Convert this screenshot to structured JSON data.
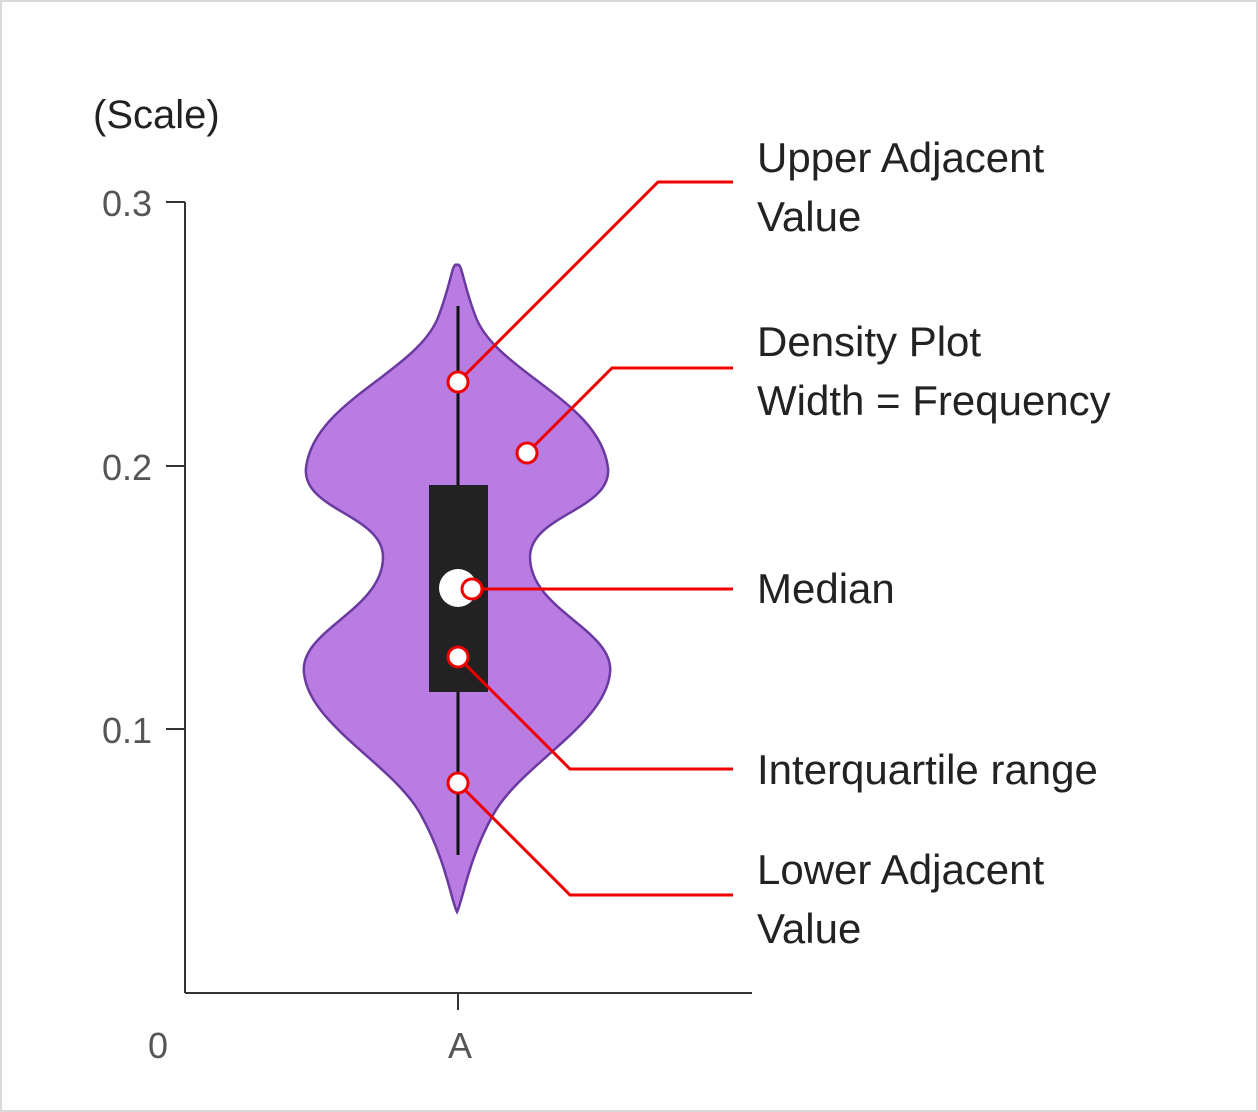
{
  "axis": {
    "scale_label": "(Scale)",
    "y_ticks": [
      {
        "label": "0.3",
        "value": 0.3
      },
      {
        "label": "0.2",
        "value": 0.2
      },
      {
        "label": "0.1",
        "value": 0.1
      }
    ],
    "origin_label": "0",
    "category_label": "A"
  },
  "callouts": {
    "upper_adjacent": {
      "line1": "Upper Adjacent",
      "line2": "Value"
    },
    "density": {
      "line1": "Density Plot",
      "line2": "Width = Frequency"
    },
    "median": {
      "line1": "Median"
    },
    "iqr": {
      "line1": "Interquartile range"
    },
    "lower_adjacent": {
      "line1": "Lower Adjacent",
      "line2": "Value"
    }
  },
  "colors": {
    "violin_fill": "#b87ce3",
    "violin_stroke": "#6b3aa0",
    "box_fill": "#222222",
    "callout_line": "#ee0000",
    "axis": "#333333",
    "text": "#222222",
    "tick_text": "#555555"
  }
}
